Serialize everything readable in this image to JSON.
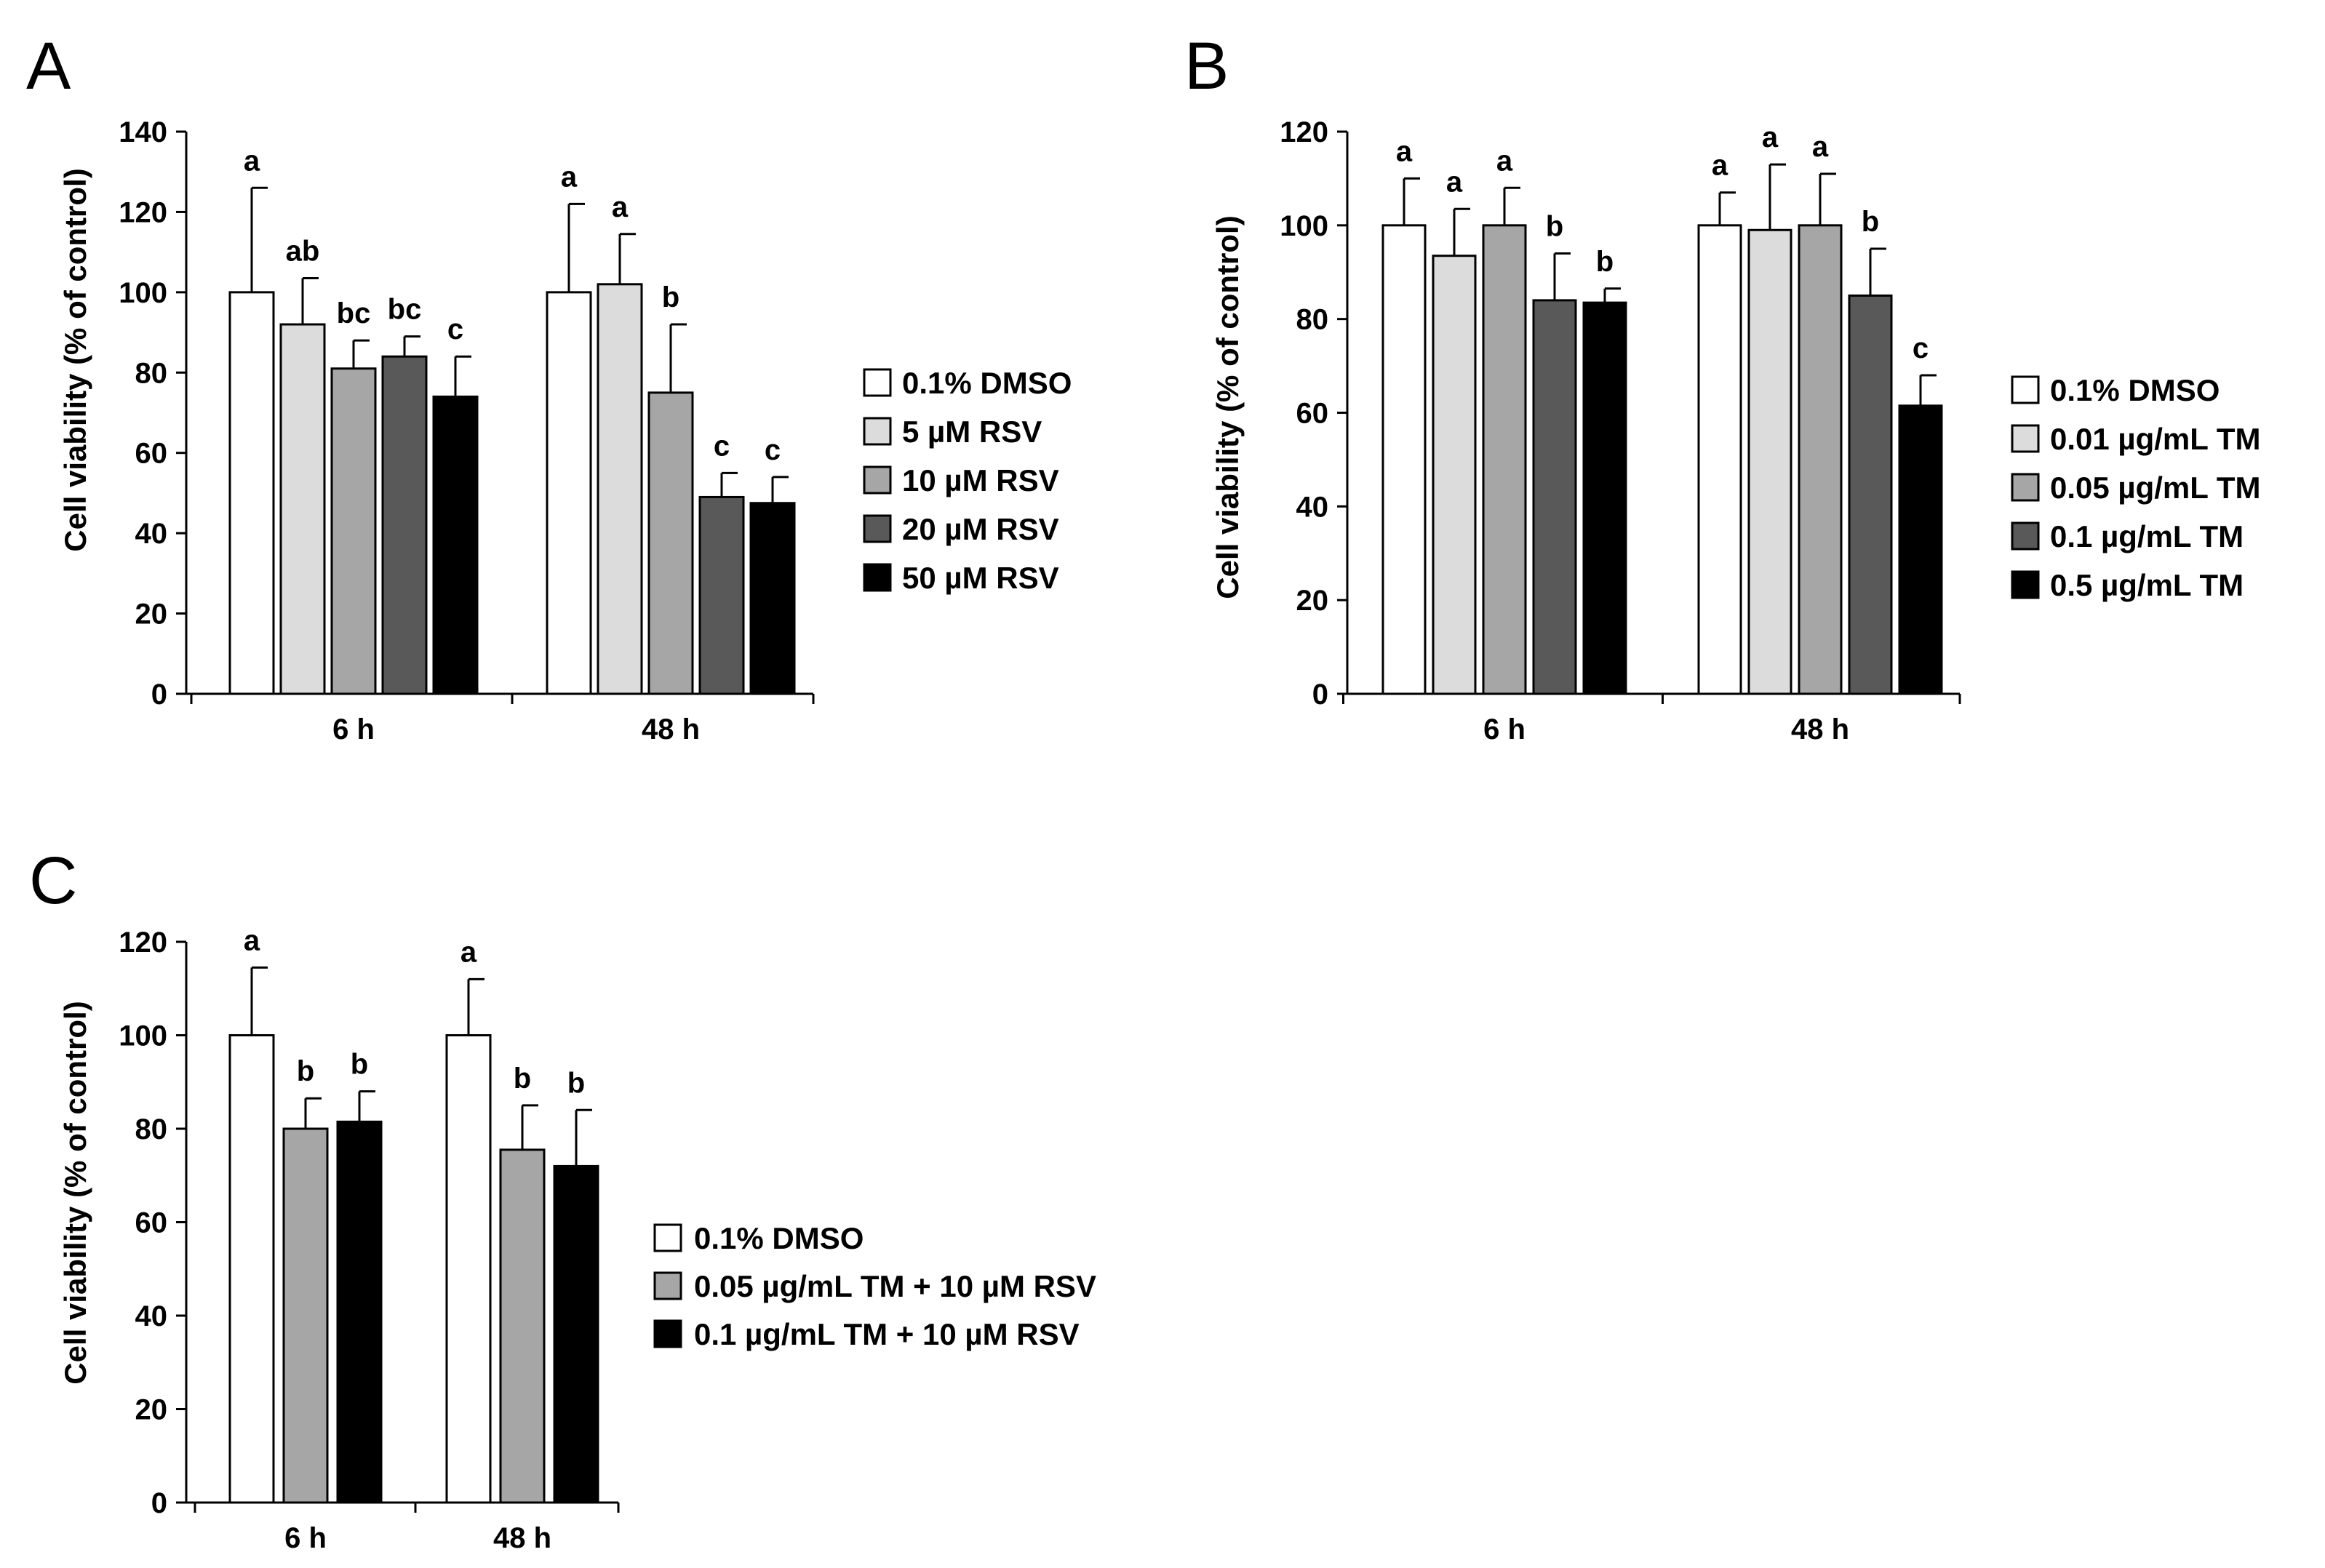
{
  "chart_data": [
    {
      "type": "bar",
      "panel": "A",
      "title": "",
      "xlabel": "",
      "ylabel": "Cell viability  (% of control)",
      "ylim": [
        0,
        140
      ],
      "yticks": [
        0,
        20,
        40,
        60,
        80,
        100,
        120,
        140
      ],
      "categories": [
        "6 h",
        "48 h"
      ],
      "series": [
        {
          "name": "0.1% DMSO",
          "color": "#ffffff",
          "values": [
            100,
            100
          ],
          "errors": [
            26,
            22
          ],
          "labels": [
            "a",
            "a"
          ]
        },
        {
          "name": "5 µM RSV",
          "color": "#dcdcdc",
          "values": [
            92,
            102
          ],
          "errors": [
            11.5,
            12.5
          ],
          "labels": [
            "ab",
            "a"
          ]
        },
        {
          "name": "10 µM RSV",
          "color": "#a6a6a6",
          "values": [
            81,
            75
          ],
          "errors": [
            7,
            17
          ],
          "labels": [
            "bc",
            "b"
          ]
        },
        {
          "name": "20 µM RSV",
          "color": "#595959",
          "values": [
            84,
            49
          ],
          "errors": [
            5,
            6
          ],
          "labels": [
            "bc",
            "c"
          ]
        },
        {
          "name": "50 µM RSV",
          "color": "#000000",
          "values": [
            74,
            47.5
          ],
          "errors": [
            10,
            6.5
          ],
          "labels": [
            "c",
            "c"
          ]
        }
      ]
    },
    {
      "type": "bar",
      "panel": "B",
      "title": "",
      "xlabel": "",
      "ylabel": "Cell viability  (% of control)",
      "ylim": [
        0,
        120
      ],
      "yticks": [
        0,
        20,
        40,
        60,
        80,
        100,
        120
      ],
      "categories": [
        "6 h",
        "48 h"
      ],
      "series": [
        {
          "name": "0.1% DMSO",
          "color": "#ffffff",
          "values": [
            100,
            100
          ],
          "errors": [
            10,
            7
          ],
          "labels": [
            "a",
            "a"
          ]
        },
        {
          "name": "0.01 µg/mL  TM",
          "color": "#dcdcdc",
          "values": [
            93.5,
            99
          ],
          "errors": [
            10,
            14
          ],
          "labels": [
            "a",
            "a"
          ]
        },
        {
          "name": "0.05 µg/mL  TM",
          "color": "#a6a6a6",
          "values": [
            100,
            100
          ],
          "errors": [
            8,
            11
          ],
          "labels": [
            "a",
            "a"
          ]
        },
        {
          "name": "0.1 µg/mL  TM",
          "color": "#595959",
          "values": [
            84,
            85
          ],
          "errors": [
            10,
            10
          ],
          "labels": [
            "b",
            "b"
          ]
        },
        {
          "name": "0.5 µg/mL  TM",
          "color": "#000000",
          "values": [
            83.5,
            61.5
          ],
          "errors": [
            3,
            6.5
          ],
          "labels": [
            "b",
            "c"
          ]
        }
      ]
    },
    {
      "type": "bar",
      "panel": "C",
      "title": "",
      "xlabel": "",
      "ylabel": "Cell viability  (% of control)",
      "ylim": [
        0,
        120
      ],
      "yticks": [
        0,
        20,
        40,
        60,
        80,
        100,
        120
      ],
      "categories": [
        "6 h",
        "48 h"
      ],
      "series": [
        {
          "name": "0.1% DMSO",
          "color": "#ffffff",
          "values": [
            100,
            100
          ],
          "errors": [
            14.5,
            12
          ],
          "labels": [
            "a",
            "a"
          ]
        },
        {
          "name": "0.05 µg/mL  TM + 10 µM RSV",
          "color": "#a6a6a6",
          "values": [
            80,
            75.5
          ],
          "errors": [
            6.5,
            9.5
          ],
          "labels": [
            "b",
            "b"
          ]
        },
        {
          "name": "0.1 µg/mL  TM + 10 µM RSV",
          "color": "#000000",
          "values": [
            81.5,
            72
          ],
          "errors": [
            6.5,
            12
          ],
          "labels": [
            "b",
            "b"
          ]
        }
      ]
    }
  ]
}
